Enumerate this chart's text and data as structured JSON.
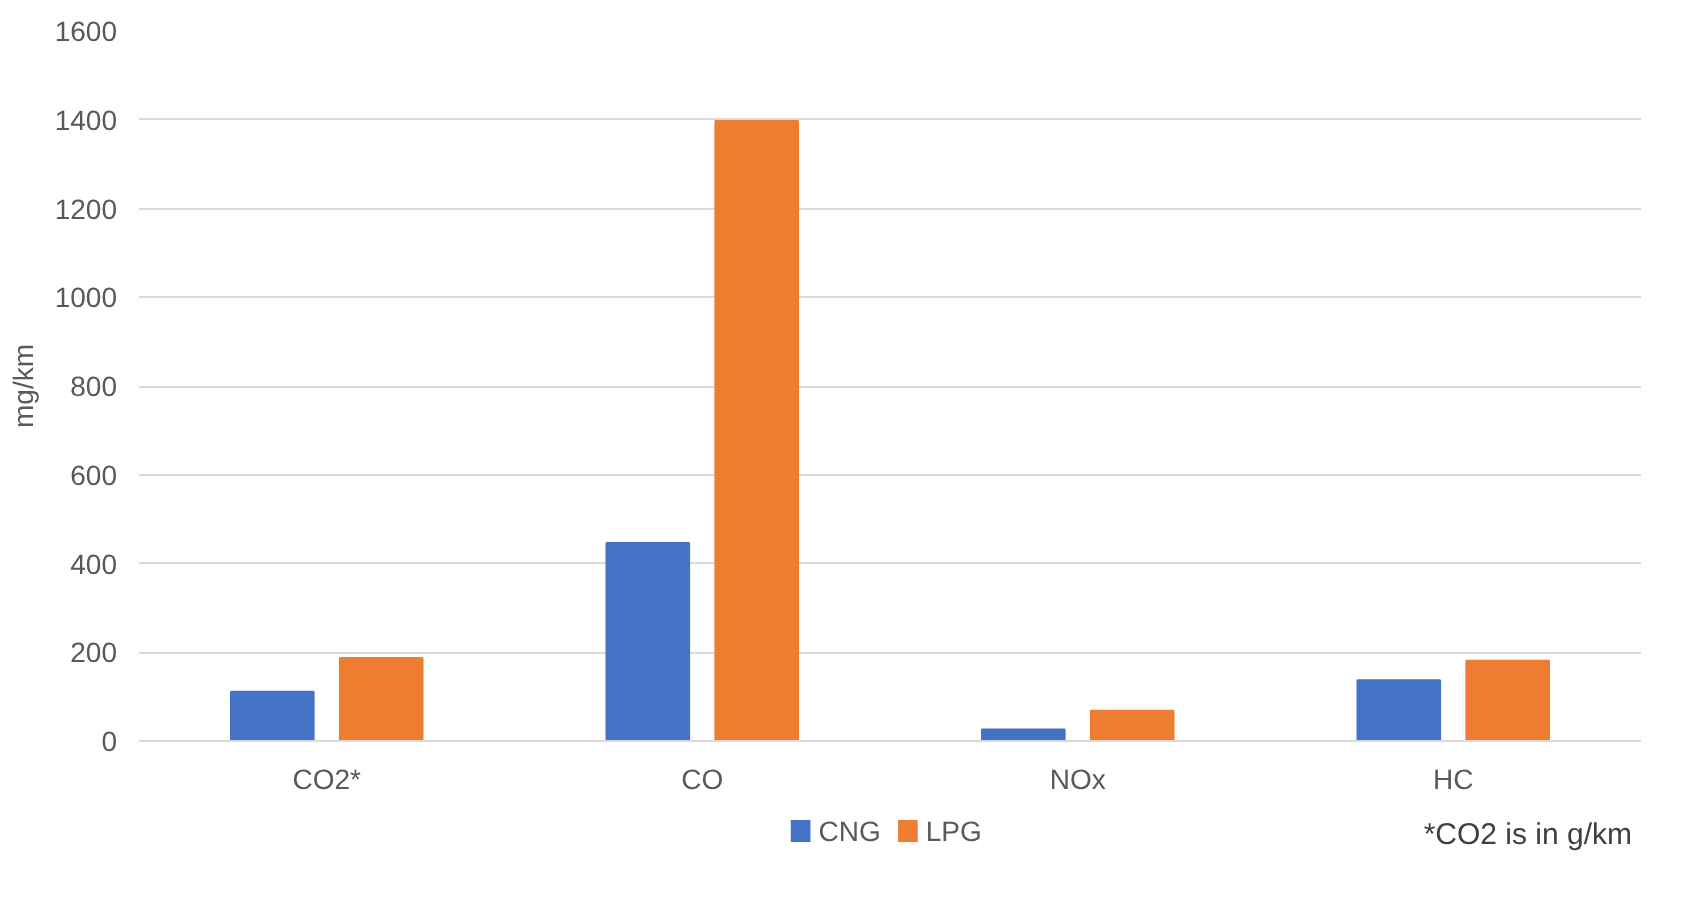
{
  "chart_data": {
    "type": "bar",
    "ylabel": "mg/km",
    "categories": [
      "CO2*",
      "CO",
      "NOx",
      "HC"
    ],
    "series": [
      {
        "name": "CNG",
        "color": "#4472c4",
        "values": [
          111,
          446,
          26,
          137
        ]
      },
      {
        "name": "LPG",
        "color": "#ed7d31",
        "values": [
          187,
          1397,
          68,
          181
        ]
      }
    ],
    "ylim": [
      0,
      1600
    ],
    "yticks": [
      0,
      200,
      400,
      600,
      800,
      1000,
      1200,
      1400,
      1600
    ],
    "grid": "y",
    "legend": "bottom",
    "annotations": [
      "*CO2 is in g/km"
    ]
  }
}
